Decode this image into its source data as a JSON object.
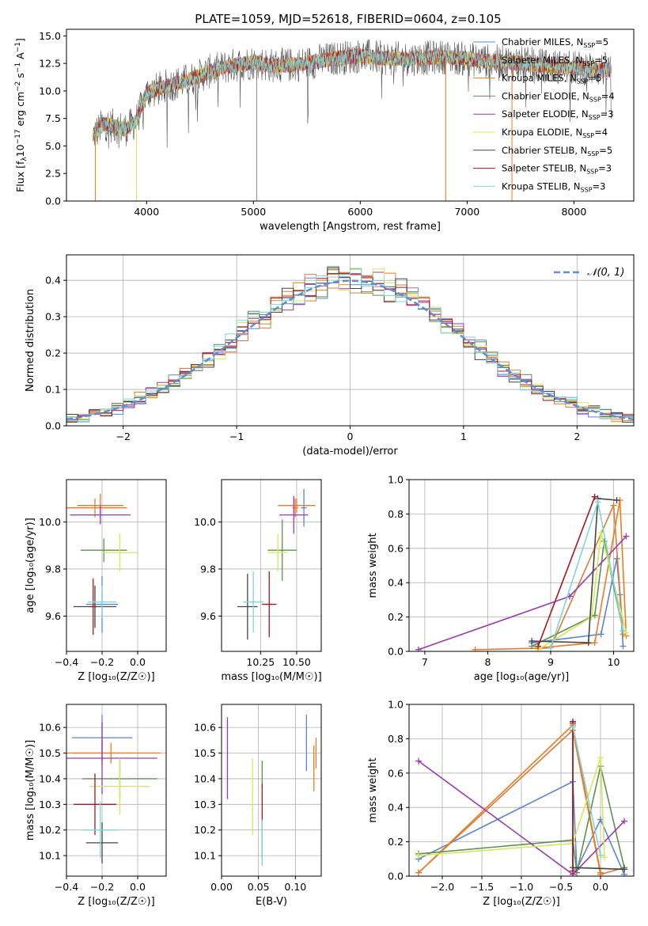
{
  "figure": {
    "title": "PLATE=1059, MJD=52618, FIBERID=0604, z=0.105"
  },
  "series_styles": [
    {
      "name": "Chabrier MILES",
      "nssp": "5",
      "color": "#5a84d6"
    },
    {
      "name": "Salpeter MILES",
      "nssp": "5",
      "color": "#e07b39"
    },
    {
      "name": "Kroupa MILES",
      "nssp": "5",
      "color": "#ee7c1c"
    },
    {
      "name": "Chabrier ELODIE",
      "nssp": "4",
      "color": "#5e9150"
    },
    {
      "name": "Salpeter ELODIE",
      "nssp": "3",
      "color": "#9a3aae"
    },
    {
      "name": "Kroupa ELODIE",
      "nssp": "4",
      "color": "#d5e85a"
    },
    {
      "name": "Chabrier STELIB",
      "nssp": "5",
      "color": "#444444"
    },
    {
      "name": "Salpeter STELIB",
      "nssp": "3",
      "color": "#a8161c"
    },
    {
      "name": "Kroupa STELIB",
      "nssp": "3",
      "color": "#7fd6d8"
    }
  ],
  "chart_data": [
    {
      "id": "spectrum",
      "type": "line",
      "xlabel": "wavelength [Angstrom, rest frame]",
      "ylabel_parts": {
        "pre": "Flux [f",
        "sub": "λ",
        "mid": "10",
        "sup1": "−17",
        "post": " erg cm",
        "sup2": "−2",
        "post2": " s",
        "sup3": "−1",
        "post3": " A",
        "sup4": "−1",
        "end": "]"
      },
      "xlim": [
        3250,
        8560
      ],
      "ylim": [
        0,
        15.6
      ],
      "xticks": [
        4000,
        5000,
        6000,
        7000,
        8000
      ],
      "yticks": [
        0.0,
        2.5,
        5.0,
        7.5,
        10.0,
        12.5,
        15.0
      ],
      "ytick_labels": [
        "0.0",
        "2.5",
        "5.0",
        "7.5",
        "10.0",
        "12.5",
        "15.0"
      ],
      "grid": false,
      "legend_position": "top-right",
      "x_range_data": [
        3500,
        8350
      ],
      "trend_points": [
        [
          3500,
          6.0
        ],
        [
          3600,
          7.0
        ],
        [
          3700,
          6.8
        ],
        [
          3800,
          6.5
        ],
        [
          3900,
          7.2
        ],
        [
          4000,
          9.8
        ],
        [
          4200,
          10.5
        ],
        [
          4400,
          11.0
        ],
        [
          4600,
          11.8
        ],
        [
          4800,
          12.3
        ],
        [
          5000,
          12.6
        ],
        [
          5200,
          12.3
        ],
        [
          5400,
          12.4
        ],
        [
          5600,
          12.7
        ],
        [
          5800,
          13.0
        ],
        [
          6000,
          13.2
        ],
        [
          6200,
          13.0
        ],
        [
          6400,
          12.9
        ],
        [
          6600,
          13.0
        ],
        [
          6800,
          13.1
        ],
        [
          7000,
          12.9
        ],
        [
          7200,
          12.7
        ],
        [
          7400,
          12.6
        ],
        [
          7600,
          12.4
        ],
        [
          7800,
          12.2
        ],
        [
          8000,
          12.1
        ],
        [
          8200,
          12.0
        ],
        [
          8350,
          11.9
        ]
      ],
      "dropouts": [
        [
          3520,
          0
        ],
        [
          3905,
          0
        ],
        [
          5030,
          0
        ],
        [
          6800,
          0
        ],
        [
          7420,
          0
        ]
      ]
    },
    {
      "id": "residuals",
      "type": "histogram",
      "xlabel": "(data-model)/error",
      "ylabel": "Normed distribution",
      "xlim": [
        -2.5,
        2.5
      ],
      "ylim": [
        0,
        0.47
      ],
      "xticks": [
        -2,
        -1,
        0,
        1,
        2
      ],
      "xtick_labels": [
        "−2",
        "−1",
        "0",
        "1",
        "2"
      ],
      "yticks": [
        0.0,
        0.1,
        0.2,
        0.3,
        0.4
      ],
      "ytick_labels": [
        "0.0",
        "0.1",
        "0.2",
        "0.3",
        "0.4"
      ],
      "grid": true,
      "legend": {
        "label": "𝒩(0, 1)",
        "position": "top-right"
      },
      "bin_width": 0.1,
      "bin_start": -2.5,
      "gaussian": {
        "mu": 0,
        "sigma": 1
      }
    },
    {
      "id": "age-vs-Z",
      "type": "errorbar",
      "xlabel": "Z [log₁₀(Z/Z☉)]",
      "ylabel": "age  [log₁₀(age/yr)]",
      "xlim": [
        -0.4,
        0.16
      ],
      "ylim": [
        9.45,
        10.18
      ],
      "xticks": [
        -0.4,
        -0.2,
        0.0
      ],
      "xtick_labels": [
        "−0.4",
        "−0.2",
        "0.0"
      ],
      "yticks": [
        9.6,
        9.8,
        10.0
      ],
      "ytick_labels": [
        "9.6",
        "9.8",
        "10.0"
      ],
      "grid": true,
      "points": [
        {
          "s": 0,
          "x": -0.2,
          "y": 9.65,
          "xerr": 0.09,
          "yerr": 0.12
        },
        {
          "s": 1,
          "x": -0.21,
          "y": 10.07,
          "xerr": 0.13,
          "yerr": 0.05
        },
        {
          "s": 2,
          "x": -0.24,
          "y": 10.06,
          "xerr": 0.18,
          "yerr": 0.04
        },
        {
          "s": 3,
          "x": -0.19,
          "y": 9.88,
          "xerr": 0.13,
          "yerr": 0.05
        },
        {
          "s": 4,
          "x": -0.21,
          "y": 10.03,
          "xerr": 0.17,
          "yerr": 0.04
        },
        {
          "s": 5,
          "x": -0.1,
          "y": 9.87,
          "xerr": 0.1,
          "yerr": 0.08
        },
        {
          "s": 6,
          "x": -0.24,
          "y": 9.64,
          "xerr": 0.12,
          "yerr": 0.09
        },
        {
          "s": 7,
          "x": -0.25,
          "y": 9.64,
          "xerr": 0.02,
          "yerr": 0.12
        },
        {
          "s": 8,
          "x": -0.2,
          "y": 9.66,
          "xerr": 0.08,
          "yerr": 0.07
        }
      ]
    },
    {
      "id": "age-vs-mass",
      "type": "errorbar",
      "xlabel": "mass [log₁₀(M/M☉)]",
      "ylabel": "",
      "xlim": [
        9.98,
        10.67
      ],
      "ylim": [
        9.45,
        10.18
      ],
      "xticks": [
        10.25,
        10.5
      ],
      "xtick_labels": [
        "10.25",
        "10.50"
      ],
      "yticks": [
        9.6,
        9.8,
        10.0
      ],
      "ytick_labels": [
        "9.6",
        "9.8",
        "10.0"
      ],
      "grid": true,
      "points": [
        {
          "s": 0,
          "x": 10.55,
          "y": 10.06,
          "xerr": 0.02,
          "yerr": 0.08
        },
        {
          "s": 1,
          "x": 10.5,
          "y": 10.07,
          "xerr": 0.13,
          "yerr": 0.03
        },
        {
          "s": 2,
          "x": 10.49,
          "y": 10.06,
          "xerr": 0.02,
          "yerr": 0.04
        },
        {
          "s": 3,
          "x": 10.4,
          "y": 9.88,
          "xerr": 0.1,
          "yerr": 0.13
        },
        {
          "s": 4,
          "x": 10.48,
          "y": 10.03,
          "xerr": 0.1,
          "yerr": 0.08
        },
        {
          "s": 5,
          "x": 10.37,
          "y": 9.87,
          "xerr": 0.07,
          "yerr": 0.08
        },
        {
          "s": 6,
          "x": 10.16,
          "y": 9.64,
          "xerr": 0.07,
          "yerr": 0.14
        },
        {
          "s": 7,
          "x": 10.31,
          "y": 9.65,
          "xerr": 0.05,
          "yerr": 0.14
        },
        {
          "s": 8,
          "x": 10.2,
          "y": 9.66,
          "xerr": 0.07,
          "yerr": 0.13
        }
      ]
    },
    {
      "id": "massweight-vs-age",
      "type": "line",
      "xlabel": "age  [log₁₀(age/yr)]",
      "ylabel": "mass weight",
      "xlim": [
        6.75,
        10.32
      ],
      "ylim": [
        0,
        1.0
      ],
      "xticks": [
        7,
        8,
        9,
        10
      ],
      "xtick_labels": [
        "7",
        "8",
        "9",
        "10"
      ],
      "yticks": [
        0.0,
        0.2,
        0.4,
        0.6,
        0.8,
        1.0
      ],
      "ytick_labels": [
        "0.0",
        "0.2",
        "0.4",
        "0.6",
        "0.8",
        "1.0"
      ],
      "grid": true,
      "series": [
        {
          "s": 0,
          "points": [
            [
              8.7,
              0.05
            ],
            [
              9.8,
              0.1
            ],
            [
              10.05,
              0.54
            ],
            [
              10.1,
              0.33
            ],
            [
              10.15,
              0.03
            ]
          ]
        },
        {
          "s": 1,
          "points": [
            [
              7.8,
              0.01
            ],
            [
              9.0,
              0.02
            ],
            [
              10.0,
              0.85
            ],
            [
              10.15,
              0.1
            ]
          ]
        },
        {
          "s": 2,
          "points": [
            [
              8.8,
              0.02
            ],
            [
              9.7,
              0.05
            ],
            [
              10.1,
              0.88
            ],
            [
              10.2,
              0.09
            ]
          ]
        },
        {
          "s": 3,
          "points": [
            [
              8.7,
              0.03
            ],
            [
              9.7,
              0.21
            ],
            [
              9.85,
              0.64
            ],
            [
              10.15,
              0.12
            ]
          ]
        },
        {
          "s": 4,
          "points": [
            [
              6.9,
              0.01
            ],
            [
              9.3,
              0.32
            ],
            [
              10.2,
              0.67
            ]
          ]
        },
        {
          "s": 5,
          "points": [
            [
              8.8,
              0.01
            ],
            [
              9.65,
              0.2
            ],
            [
              9.8,
              0.69
            ],
            [
              10.2,
              0.11
            ]
          ]
        },
        {
          "s": 6,
          "points": [
            [
              8.7,
              0.06
            ],
            [
              9.6,
              0.05
            ],
            [
              9.75,
              0.89
            ],
            [
              10.05,
              0.88
            ]
          ]
        },
        {
          "s": 7,
          "points": [
            [
              8.8,
              0.03
            ],
            [
              9.7,
              0.9
            ]
          ]
        },
        {
          "s": 8,
          "points": [
            [
              9.0,
              0.02
            ],
            [
              9.75,
              0.87
            ],
            [
              10.15,
              0.12
            ]
          ]
        }
      ]
    },
    {
      "id": "mass-vs-Z",
      "type": "errorbar",
      "xlabel": "Z [log₁₀(Z/Z☉)]",
      "ylabel": "mass [log₁₀(M/M☉)]",
      "xlim": [
        -0.4,
        0.16
      ],
      "ylim": [
        10.02,
        10.69
      ],
      "xticks": [
        -0.4,
        -0.2,
        0.0
      ],
      "xtick_labels": [
        "−0.4",
        "−0.2",
        "0.0"
      ],
      "yticks": [
        10.1,
        10.2,
        10.3,
        10.4,
        10.5,
        10.6
      ],
      "ytick_labels": [
        "10.1",
        "10.2",
        "10.3",
        "10.4",
        "10.5",
        "10.6"
      ],
      "grid": true,
      "points": [
        {
          "s": 0,
          "x": -0.2,
          "y": 10.56,
          "xerr": 0.17,
          "yerr": 0.09
        },
        {
          "s": 1,
          "x": -0.2,
          "y": 10.5,
          "xerr": 0.17,
          "yerr": 0.05
        },
        {
          "s": 2,
          "x": -0.15,
          "y": 10.5,
          "xerr": 0.28,
          "yerr": 0.04
        },
        {
          "s": 3,
          "x": -0.1,
          "y": 10.4,
          "xerr": 0.21,
          "yerr": 0.08
        },
        {
          "s": 4,
          "x": -0.2,
          "y": 10.48,
          "xerr": 0.31,
          "yerr": 0.14
        },
        {
          "s": 5,
          "x": -0.1,
          "y": 10.37,
          "xerr": 0.17,
          "yerr": 0.11
        },
        {
          "s": 6,
          "x": -0.2,
          "y": 10.15,
          "xerr": 0.09,
          "yerr": 0.08
        },
        {
          "s": 7,
          "x": -0.24,
          "y": 10.3,
          "xerr": 0.12,
          "yerr": 0.12
        },
        {
          "s": 8,
          "x": -0.21,
          "y": 10.2,
          "xerr": 0.1,
          "yerr": 0.11
        }
      ]
    },
    {
      "id": "mass-vs-ebv",
      "type": "errorbar",
      "xlabel": "E(B-V)",
      "ylabel": "",
      "xlim": [
        0.0,
        0.135
      ],
      "ylim": [
        10.02,
        10.69
      ],
      "xticks": [
        0.0,
        0.05,
        0.1
      ],
      "xtick_labels": [
        "0.00",
        "0.05",
        "0.10"
      ],
      "yticks": [
        10.1,
        10.2,
        10.3,
        10.4,
        10.5,
        10.6
      ],
      "ytick_labels": [
        "10.1",
        "10.2",
        "10.3",
        "10.4",
        "10.5",
        "10.6"
      ],
      "grid": true,
      "points": [
        {
          "s": 0,
          "x": 0.115,
          "y": 10.54,
          "xerr": 0,
          "yerr": 0.11
        },
        {
          "s": 1,
          "x": 0.128,
          "y": 10.5,
          "xerr": 0,
          "yerr": 0.06
        },
        {
          "s": 2,
          "x": 0.125,
          "y": 10.44,
          "xerr": 0,
          "yerr": 0.09
        },
        {
          "s": 3,
          "x": 0.055,
          "y": 10.42,
          "xerr": 0,
          "yerr": 0.05
        },
        {
          "s": 4,
          "x": 0.008,
          "y": 10.48,
          "xerr": 0,
          "yerr": 0.16
        },
        {
          "s": 5,
          "x": 0.042,
          "y": 10.33,
          "xerr": 0,
          "yerr": 0.15
        },
        {
          "s": 6,
          "x": 0.055,
          "y": 10.16,
          "xerr": 0,
          "yerr": 0.07
        },
        {
          "s": 7,
          "x": 0.055,
          "y": 10.3,
          "xerr": 0,
          "yerr": 0.08
        },
        {
          "s": 8,
          "x": 0.055,
          "y": 10.15,
          "xerr": 0,
          "yerr": 0.09
        }
      ]
    },
    {
      "id": "massweight-vs-Z",
      "type": "line",
      "xlabel": "Z [log₁₀(Z/Z☉)]",
      "ylabel": "mass weight",
      "xlim": [
        -2.42,
        0.42
      ],
      "ylim": [
        0,
        1.0
      ],
      "xticks": [
        -2.0,
        -1.5,
        -1.0,
        -0.5,
        0.0
      ],
      "xtick_labels": [
        "−2.0",
        "−1.5",
        "−1.0",
        "−0.5",
        "0.0"
      ],
      "yticks": [
        0.0,
        0.2,
        0.4,
        0.6,
        0.8,
        1.0
      ],
      "ytick_labels": [
        "0.0",
        "0.2",
        "0.4",
        "0.6",
        "0.8",
        "1.0"
      ],
      "grid": true,
      "series": [
        {
          "s": 0,
          "points": [
            [
              -2.3,
              0.1
            ],
            [
              -0.35,
              0.55
            ],
            [
              -0.3,
              0.04
            ],
            [
              0.0,
              0.33
            ],
            [
              0.3,
              0.01
            ]
          ]
        },
        {
          "s": 1,
          "points": [
            [
              -2.3,
              0.02
            ],
            [
              -0.35,
              0.85
            ],
            [
              0.0,
              0.01
            ],
            [
              0.3,
              0.05
            ]
          ]
        },
        {
          "s": 2,
          "points": [
            [
              -2.3,
              0.02
            ],
            [
              -0.35,
              0.88
            ],
            [
              0.0,
              0.02
            ]
          ]
        },
        {
          "s": 3,
          "points": [
            [
              -2.3,
              0.13
            ],
            [
              -0.35,
              0.21
            ],
            [
              -0.3,
              0.02
            ],
            [
              0.0,
              0.64
            ],
            [
              0.3,
              0.05
            ]
          ]
        },
        {
          "s": 4,
          "points": [
            [
              -2.3,
              0.67
            ],
            [
              -0.35,
              0.01
            ],
            [
              0.3,
              0.32
            ]
          ]
        },
        {
          "s": 5,
          "points": [
            [
              -2.3,
              0.12
            ],
            [
              -0.35,
              0.19
            ],
            [
              0.0,
              0.69
            ],
            [
              0.05,
              0.11
            ]
          ]
        },
        {
          "s": 6,
          "points": [
            [
              -0.35,
              0.89
            ],
            [
              -0.35,
              0.05
            ],
            [
              0.3,
              0.04
            ]
          ]
        },
        {
          "s": 7,
          "points": [
            [
              -0.35,
              0.03
            ],
            [
              -0.35,
              0.9
            ]
          ]
        },
        {
          "s": 8,
          "points": [
            [
              -0.35,
              0.87
            ],
            [
              0.0,
              0.12
            ]
          ]
        }
      ]
    }
  ]
}
